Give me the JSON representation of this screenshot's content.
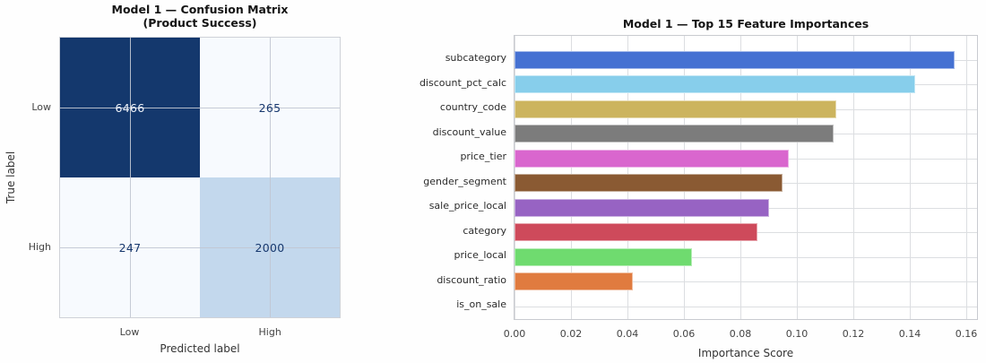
{
  "figure": {
    "background": "#fefefe",
    "text_color": "#141414"
  },
  "chart_data": [
    {
      "type": "heatmap",
      "title": "Model 1 — Confusion Matrix",
      "subtitle": "(Product Success)",
      "xlabel": "Predicted label",
      "ylabel": "True label",
      "x_categories": [
        "Low",
        "High"
      ],
      "y_categories": [
        "Low",
        "High"
      ],
      "values": [
        [
          6466,
          265
        ],
        [
          247,
          2000
        ]
      ],
      "colormap": "Blues",
      "cell_colors": [
        [
          "#14386d",
          "#f7fafe"
        ],
        [
          "#f7fafe",
          "#c3d8ed"
        ]
      ],
      "cell_text_colors": [
        [
          "#f0f4fa",
          "#17386e"
        ],
        [
          "#17386e",
          "#17386e"
        ]
      ],
      "grid": true
    },
    {
      "type": "bar",
      "orientation": "horizontal",
      "title": "Model 1 — Top 15 Feature Importances",
      "xlabel": "Importance Score",
      "ylabel": "",
      "categories": [
        "subcategory",
        "discount_pct_calc",
        "country_code",
        "discount_value",
        "price_tier",
        "gender_segment",
        "sale_price_local",
        "category",
        "price_local",
        "discount_ratio",
        "is_on_sale"
      ],
      "values": [
        0.156,
        0.142,
        0.114,
        0.113,
        0.097,
        0.095,
        0.09,
        0.086,
        0.063,
        0.042,
        0.0
      ],
      "colors": [
        "#4571d2",
        "#87ceeb",
        "#ccb45e",
        "#7c7c7c",
        "#d966ce",
        "#8a5a33",
        "#9763c3",
        "#ce4a5b",
        "#6fdb6f",
        "#e07b3f",
        "#aaaaaa"
      ],
      "xlim": [
        0,
        0.1638
      ],
      "x_ticks": [
        0.0,
        0.02,
        0.04,
        0.06,
        0.08,
        0.1,
        0.12,
        0.14,
        0.16
      ],
      "x_tick_labels": [
        "0.00",
        "0.02",
        "0.04",
        "0.06",
        "0.08",
        "0.10",
        "0.12",
        "0.14",
        "0.16"
      ],
      "grid": true,
      "legend": false
    }
  ]
}
